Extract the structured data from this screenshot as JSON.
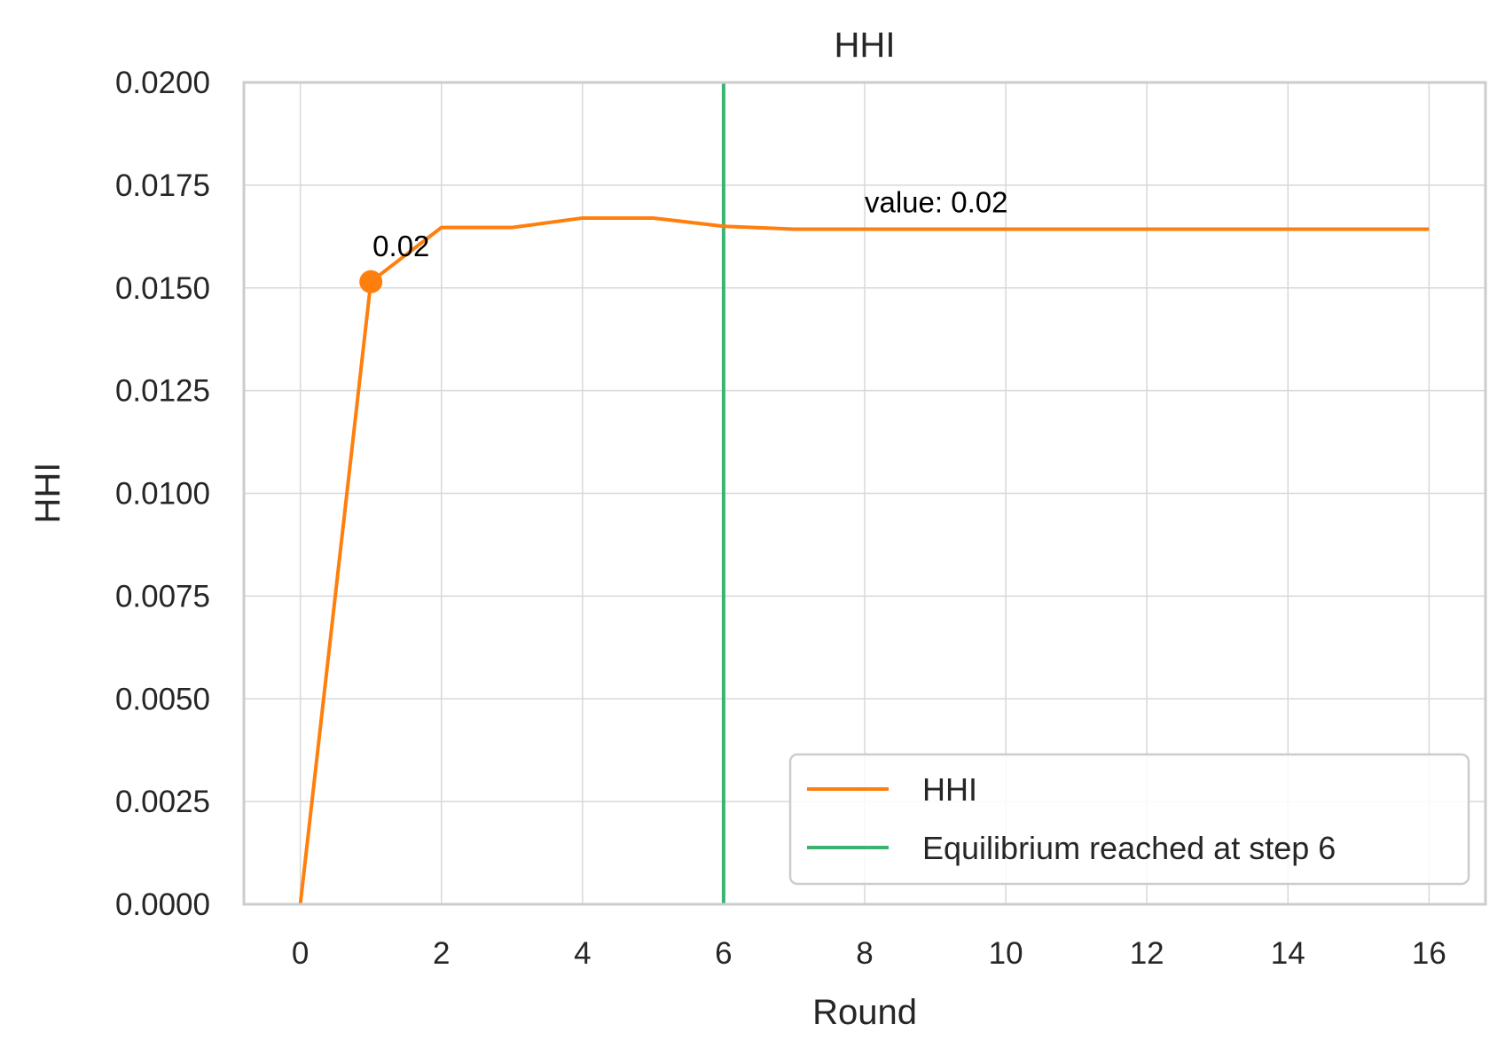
{
  "chart_data": {
    "type": "line",
    "title": "HHI",
    "xlabel": "Round",
    "ylabel": "HHI",
    "xlim": [
      -0.8,
      16.8
    ],
    "ylim": [
      0,
      0.02
    ],
    "xticks": [
      0,
      2,
      4,
      6,
      8,
      10,
      12,
      14,
      16
    ],
    "yticks": [
      0.0,
      0.0025,
      0.005,
      0.0075,
      0.01,
      0.0125,
      0.015,
      0.0175,
      0.02
    ],
    "ytick_labels": [
      "0.0000",
      "0.0025",
      "0.0050",
      "0.0075",
      "0.0100",
      "0.0125",
      "0.0150",
      "0.0175",
      "0.0200"
    ],
    "xtick_labels": [
      "0",
      "2",
      "4",
      "6",
      "8",
      "10",
      "12",
      "14",
      "16"
    ],
    "grid": true,
    "series": [
      {
        "name": "HHI",
        "color": "#ff7f0e",
        "x": [
          0,
          1,
          2,
          3,
          4,
          5,
          6,
          7,
          8,
          9,
          10,
          11,
          12,
          13,
          14,
          15,
          16
        ],
        "y": [
          0.0,
          0.01515,
          0.01647,
          0.01647,
          0.0167,
          0.0167,
          0.0165,
          0.01643,
          0.01643,
          0.01643,
          0.01643,
          0.01643,
          0.01643,
          0.01643,
          0.01643,
          0.01643,
          0.01643
        ]
      }
    ],
    "vline": {
      "name": "Equilibrium reached at step 6",
      "x": 6,
      "color": "#3cb371"
    },
    "marker": {
      "x": 1,
      "y": 0.01515,
      "label": "0.02"
    },
    "annotation": {
      "text": "value: 0.02",
      "x": 8,
      "y": 0.0171
    },
    "legend": {
      "position": "lower-right",
      "entries": [
        {
          "label": "HHI",
          "color": "#ff7f0e"
        },
        {
          "label": "Equilibrium reached at step 6",
          "color": "#3cb371"
        }
      ]
    }
  }
}
